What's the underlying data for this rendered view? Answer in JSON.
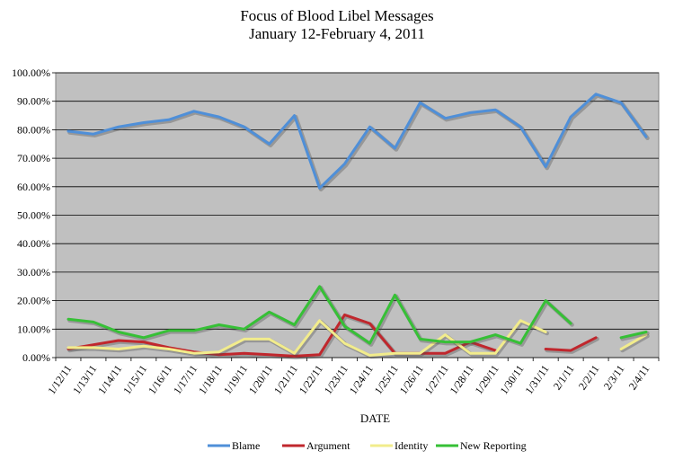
{
  "chart_data": {
    "type": "line",
    "title": "Focus of Blood Libel Messages",
    "subtitle": "January 12-February 4, 2011",
    "xlabel": "DATE",
    "ylabel": "",
    "ylim": [
      0,
      100
    ],
    "y_tick_labels": [
      "0.00%",
      "10.00%",
      "20.00%",
      "30.00%",
      "40.00%",
      "50.00%",
      "60.00%",
      "70.00%",
      "80.00%",
      "90.00%",
      "100.00%"
    ],
    "grid": true,
    "legend_position": "bottom",
    "categories": [
      "1/12/11",
      "1/13/11",
      "1/14/11",
      "1/15/11",
      "1/16/11",
      "1/17/11",
      "1/18/11",
      "1/19/11",
      "1/20/11",
      "1/21/11",
      "1/22/11",
      "1/23/11",
      "1/24/11",
      "1/25/11",
      "1/26/11",
      "1/27/11",
      "1/28/11",
      "1/29/11",
      "1/30/11",
      "1/31/11",
      "2/1/11",
      "2/2/11",
      "2/3/11",
      "2/4/11"
    ],
    "x": [
      "1/12/11",
      "",
      "1/13/11",
      "",
      "1/14/11",
      "",
      "1/15/11",
      "",
      "1/16/11",
      "",
      "1/17/11",
      "",
      "1/18/11",
      "",
      "1/19/11",
      "",
      "1/20/11",
      "",
      "1/21/11",
      "",
      "1/22/11",
      "",
      "1/23/11",
      "",
      "1/24/11",
      "",
      "1/25/11",
      "",
      "1/26/11",
      "",
      "1/27/11",
      "",
      "1/28/11",
      "",
      "1/29/11",
      "",
      "1/30/11",
      "",
      "1/31/11",
      "",
      "2/1/11",
      "",
      "2/2/11",
      "",
      "2/3/11",
      "",
      "2/4/11"
    ],
    "series": [
      {
        "name": "Blame",
        "color": "#4f8fd8",
        "values": [
          79.5,
          78.5,
          81,
          82.5,
          83.5,
          86.5,
          84.5,
          81,
          75,
          85,
          59.5,
          68,
          81,
          73.5,
          89.5,
          84,
          86,
          87,
          81,
          67,
          84.5,
          92.5,
          89.5,
          77.5
        ]
      },
      {
        "name": "Argument",
        "color": "#c0272d",
        "values": [
          3,
          4.5,
          6,
          5.5,
          3.5,
          2,
          1,
          1.5,
          1,
          0.5,
          1,
          15,
          12,
          1.5,
          1.5,
          1.5,
          5.5,
          2.5,
          null,
          3,
          2.5,
          7,
          null,
          null
        ]
      },
      {
        "name": "Identity",
        "color": "#f2ec8c",
        "values": [
          3.5,
          3.5,
          3,
          4,
          3,
          1.5,
          2,
          6.5,
          6.5,
          1.5,
          13,
          5,
          0.8,
          1.5,
          1.5,
          8,
          1.5,
          1.5,
          13,
          9,
          null,
          null,
          3,
          8
        ]
      },
      {
        "name": "New Reporting",
        "color": "#36c036",
        "values": [
          13.5,
          12.5,
          9,
          7,
          9.5,
          9.5,
          11.5,
          10,
          16,
          11.5,
          25,
          11,
          5,
          22,
          6.5,
          5.5,
          5.5,
          8,
          5,
          20,
          12,
          null,
          7,
          9
        ]
      }
    ]
  }
}
